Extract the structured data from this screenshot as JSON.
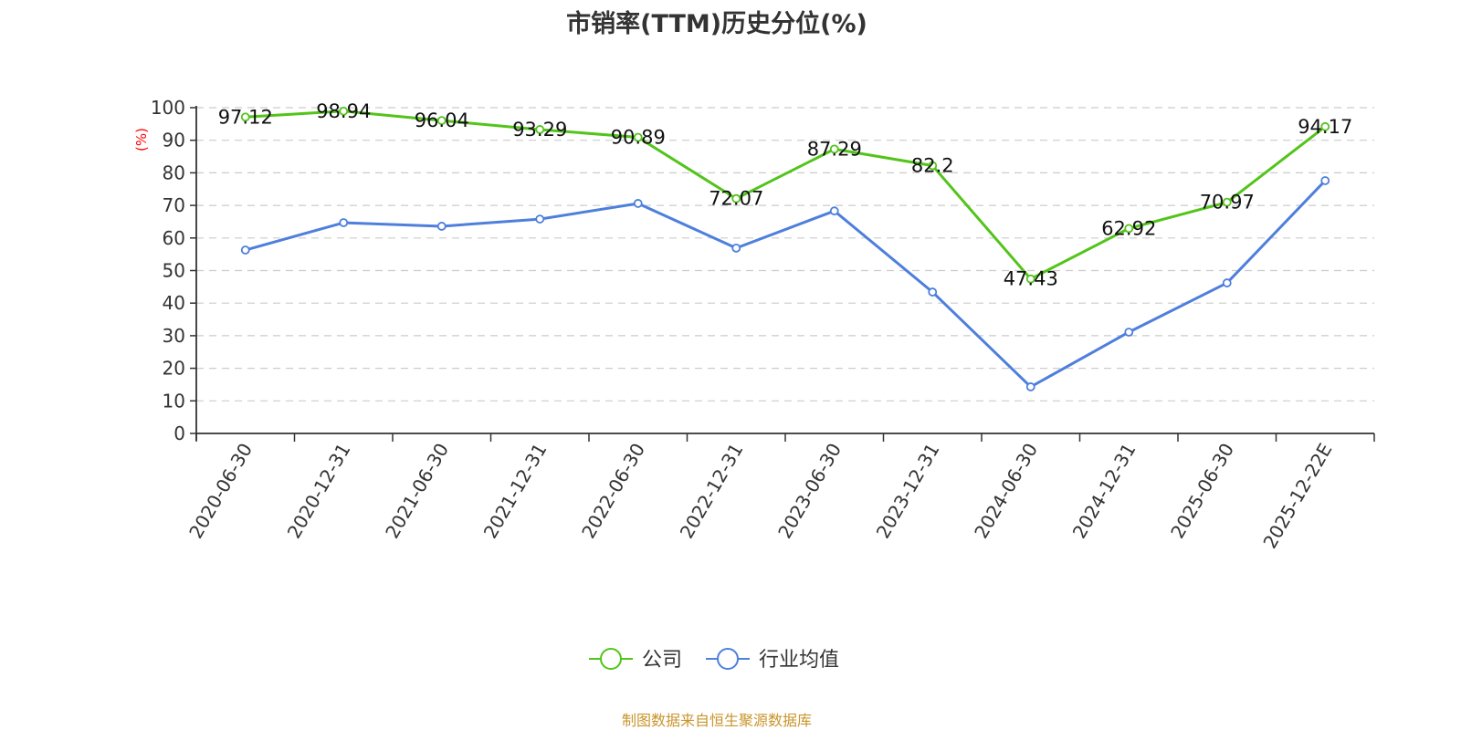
{
  "title": "市销率(TTM)历史分位(%)",
  "footer": "制图数据来自恒生聚源数据库",
  "colors": {
    "company": "#52c41a",
    "industry": "#4e7fdc",
    "grid": "#cccccc",
    "axis": "#333333",
    "unit": "#ff0000",
    "footer": "#c8952c"
  },
  "legend": [
    {
      "name": "公司",
      "color": "#52c41a"
    },
    {
      "name": "行业均值",
      "color": "#4e7fdc"
    }
  ],
  "chart_data": {
    "type": "line",
    "title": "市销率(TTM)历史分位(%)",
    "xlabel": "",
    "ylabel": "(%)",
    "ylim": [
      0,
      100
    ],
    "yticks": [
      0,
      10,
      20,
      30,
      40,
      50,
      60,
      70,
      80,
      90,
      100
    ],
    "grid": true,
    "legend_position": "bottom",
    "categories": [
      "2020-06-30",
      "2020-12-31",
      "2021-06-30",
      "2021-12-31",
      "2022-06-30",
      "2022-12-31",
      "2023-06-30",
      "2023-12-31",
      "2024-06-30",
      "2024-12-31",
      "2025-06-30",
      "2025-12-22E"
    ],
    "series": [
      {
        "name": "公司",
        "values": [
          97.12,
          98.94,
          96.04,
          93.29,
          90.89,
          72.07,
          87.29,
          82.2,
          47.43,
          62.92,
          70.97,
          94.17
        ],
        "labels": [
          "97.12",
          "98.94",
          "96.04",
          "93.29",
          "90.89",
          "72.07",
          "87.29",
          "82.2",
          "47.43",
          "62.92",
          "70.97",
          "94.17"
        ]
      },
      {
        "name": "行业均值",
        "values": [
          56.3,
          64.7,
          63.6,
          65.8,
          70.6,
          56.9,
          68.3,
          43.4,
          14.3,
          31.1,
          46.2,
          77.6
        ]
      }
    ]
  }
}
